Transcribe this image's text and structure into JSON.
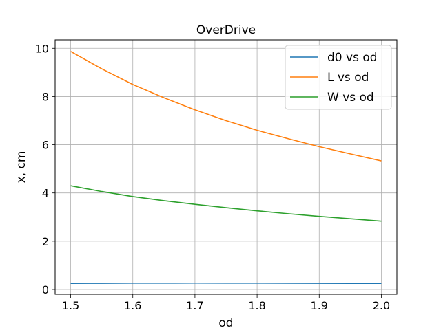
{
  "chart_data": {
    "type": "line",
    "title": "OverDrive",
    "xlabel": "od",
    "ylabel": "x, cm",
    "xlim": [
      1.475,
      2.025
    ],
    "ylim": [
      -0.2,
      10.35
    ],
    "xticks": [
      1.5,
      1.6,
      1.7,
      1.8,
      1.9,
      2.0
    ],
    "xtick_labels": [
      "1.5",
      "1.6",
      "1.7",
      "1.8",
      "1.9",
      "2.0"
    ],
    "yticks": [
      0,
      2,
      4,
      6,
      8,
      10
    ],
    "ytick_labels": [
      "0",
      "2",
      "4",
      "6",
      "8",
      "10"
    ],
    "grid": true,
    "legend_position": "top-right",
    "x": [
      1.5,
      1.55,
      1.6,
      1.65,
      1.7,
      1.75,
      1.8,
      1.85,
      1.9,
      1.95,
      2.0
    ],
    "series": [
      {
        "name": "d0 vs od",
        "color": "#1f77b4",
        "values": [
          0.25,
          0.255,
          0.26,
          0.262,
          0.263,
          0.262,
          0.26,
          0.258,
          0.255,
          0.252,
          0.25
        ]
      },
      {
        "name": "L vs od",
        "color": "#ff7f0e",
        "values": [
          9.87,
          9.15,
          8.5,
          7.95,
          7.45,
          7.0,
          6.6,
          6.25,
          5.92,
          5.62,
          5.33
        ]
      },
      {
        "name": "W vs od",
        "color": "#2ca02c",
        "values": [
          4.3,
          4.06,
          3.85,
          3.68,
          3.53,
          3.39,
          3.26,
          3.14,
          3.03,
          2.93,
          2.83
        ]
      }
    ]
  }
}
